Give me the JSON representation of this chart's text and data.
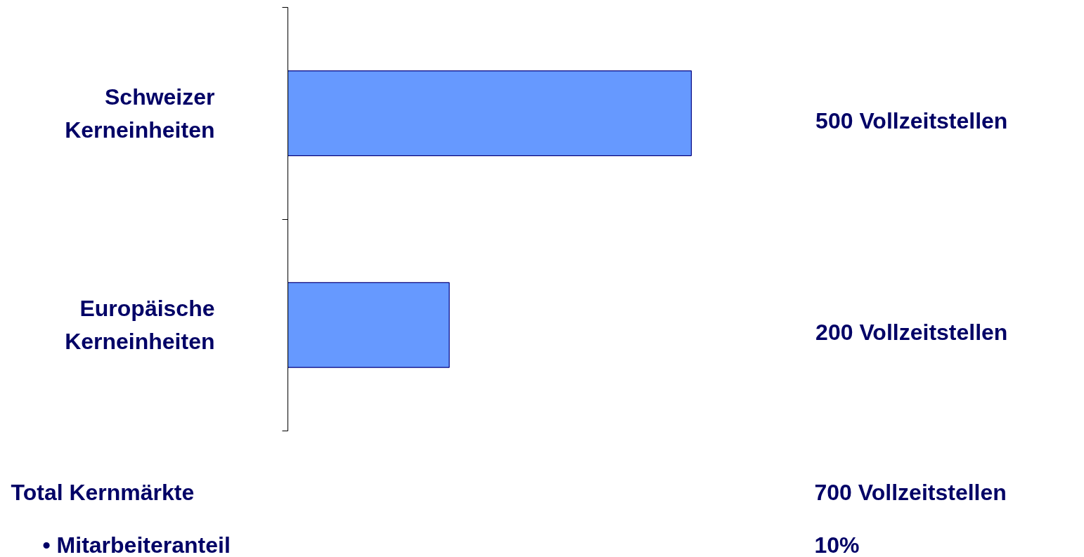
{
  "chart_data": {
    "type": "bar",
    "orientation": "horizontal",
    "categories": [
      "Schweizer Kerneinheiten",
      "Europäische Kerneinheiten"
    ],
    "values": [
      500,
      200
    ],
    "color": "#6699ff",
    "value_labels": [
      "500 Vollzeitstellen",
      "200 Vollzeitstellen"
    ],
    "annotations": [
      "Total  Kernmärkte",
      "700 Vollzeitstellen",
      "• Mitarbeiteranteil",
      "10%"
    ],
    "grid": false
  }
}
